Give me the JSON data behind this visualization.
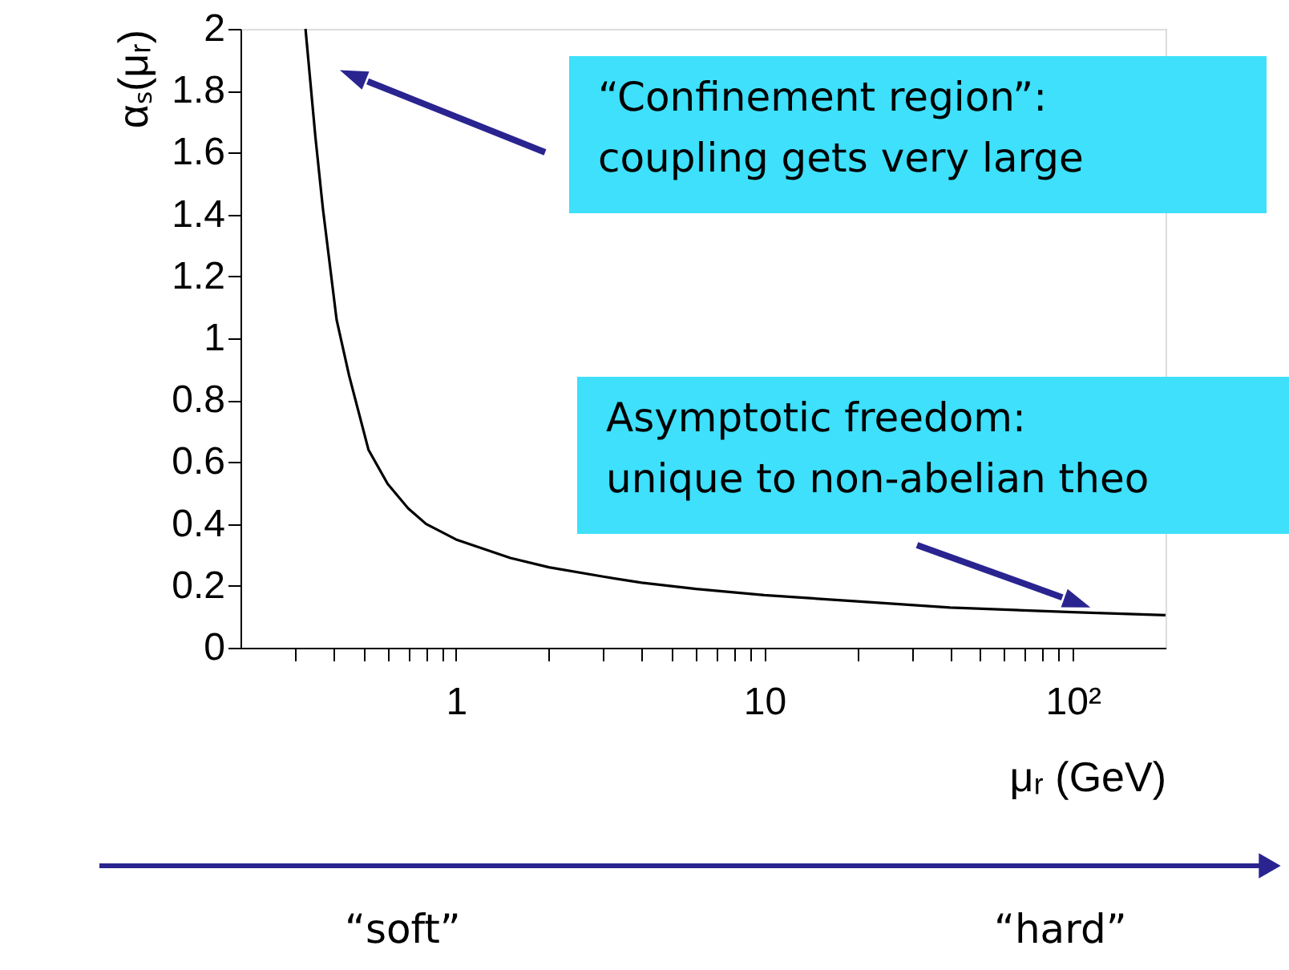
{
  "chart_data": {
    "type": "line",
    "xlabel": "μᵣ (GeV)",
    "ylabel": "αₛ(μᵣ)",
    "log": "x",
    "x": [
      0.325,
      0.35,
      0.37,
      0.41,
      0.45,
      0.52,
      0.6,
      0.7,
      0.8,
      1,
      1.5,
      2,
      3,
      4,
      6,
      10,
      20,
      40,
      100,
      200
    ],
    "series": [
      {
        "color": "#000000",
        "values": [
          2.0,
          1.65,
          1.42,
          1.06,
          0.88,
          0.64,
          0.53,
          0.45,
          0.4,
          0.35,
          0.29,
          0.26,
          0.23,
          0.21,
          0.19,
          0.17,
          0.15,
          0.13,
          0.115,
          0.105
        ]
      }
    ],
    "xlim": [
      0.2,
      200
    ],
    "xticks": [
      {
        "value": 0.3,
        "label": null
      },
      {
        "value": 0.4,
        "label": null
      },
      {
        "value": 0.5,
        "label": null
      },
      {
        "value": 0.6,
        "label": null
      },
      {
        "value": 0.7,
        "label": null
      },
      {
        "value": 0.8,
        "label": null
      },
      {
        "value": 0.9,
        "label": null
      },
      1,
      {
        "value": 2,
        "label": null
      },
      {
        "value": 3,
        "label": null
      },
      {
        "value": 4,
        "label": null
      },
      {
        "value": 5,
        "label": null
      },
      {
        "value": 6,
        "label": null
      },
      {
        "value": 7,
        "label": null
      },
      {
        "value": 8,
        "label": null
      },
      {
        "value": 9,
        "label": null
      },
      10,
      {
        "value": 20,
        "label": null
      },
      {
        "value": 30,
        "label": null
      },
      {
        "value": 40,
        "label": null
      },
      {
        "value": 50,
        "label": null
      },
      {
        "value": 60,
        "label": null
      },
      {
        "value": 70,
        "label": null
      },
      {
        "value": 80,
        "label": null
      },
      {
        "value": 90,
        "label": null
      },
      {
        "value": 100,
        "label": "10²"
      }
    ],
    "ylim": [
      0,
      2
    ],
    "yticks": [
      0,
      0.2,
      0.4,
      0.6,
      0.8,
      1,
      1.2,
      1.4,
      1.6,
      1.8,
      2
    ],
    "grid": false,
    "marker": "none",
    "line_style": "solid",
    "annotations": [
      "“Confinement region”:\ncoupling gets very large",
      "Asymptotic freedom:\nunique to non-abelian theo",
      "“soft”",
      "“hard”"
    ]
  }
}
